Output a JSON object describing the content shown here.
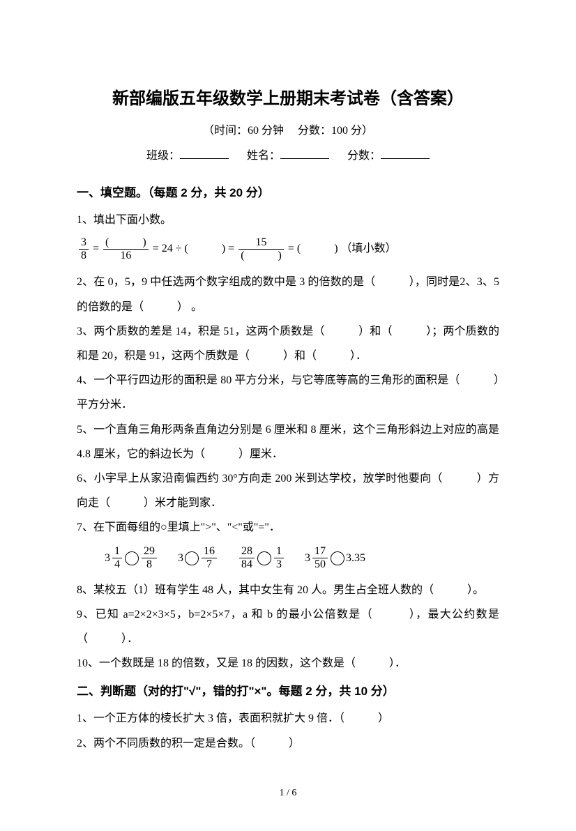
{
  "title": "新部编版五年级数学上册期末考试卷（含答案）",
  "subtitle": "（时间：60 分钟　 分数：100 分）",
  "info": {
    "class_label": "班级：",
    "name_label": "姓名：",
    "score_label": "分数："
  },
  "section1": {
    "header": "一、填空题。（每题 2 分，共 20 分）",
    "q1": "1、填出下面小数。",
    "q1_eq_frac_left_num": "3",
    "q1_eq_frac_left_den": "8",
    "q1_eq_eq": "=",
    "q1_eq_frac2_num": "(　　　)",
    "q1_eq_frac2_den": "16",
    "q1_eq_div": "= 24 ÷ (　　　) =",
    "q1_eq_frac3_num": "15",
    "q1_eq_frac3_den": "(　　　)",
    "q1_eq_tail": "= (　　　) （填小数）",
    "q2": "2、在 0，5，9 中任选两个数字组成的数中是 3 的倍数的是（　　　），同时是2、3、5 的倍数的是（　　　） 。",
    "q3": "3、两个质数的差是 14，积是 51，这两个质数是（　　　）和（　　　）；两个质数的和是 20，积是 91，这两个质数是（　　　）和（　　　）．",
    "q4": "4、一个平行四边形的面积是 80 平方分米，与它等底等高的三角形的面积是（　　　）平方分米．",
    "q5": "5、一个直角三角形两条直角边分别是 6 厘米和 8 厘米，这个三角形斜边上对应的高是 4.8 厘米，它的斜边长为（　　　）厘米．",
    "q6": "6、小宇早上从家沿南偏西约 30°方向走 200 米到达学校，放学时他要向（　　　）方向走（　　　）米才能到家．",
    "q7": "7、在下面每组的○里填上\">\"、\"<\"或\"=\"．",
    "q7_c1_whole": "3",
    "q7_c1_num": "1",
    "q7_c1_den": "4",
    "q7_c1b_num": "29",
    "q7_c1b_den": "8",
    "q7_c2_a": "3",
    "q7_c2_num": "16",
    "q7_c2_den": "7",
    "q7_c3a_num": "28",
    "q7_c3a_den": "84",
    "q7_c3b_num": "1",
    "q7_c3b_den": "3",
    "q7_c4_whole": "3",
    "q7_c4_num": "17",
    "q7_c4_den": "50",
    "q7_c4_b": "3.35",
    "q8": "8、某校五（1）班有学生 48 人，其中女生有 20 人。男生占全班人数的（　　　）。",
    "q9": "9、已知 a=2×2×3×5，b=2×5×7，a 和 b 的最小公倍数是（　　　），最大公约数是（　　　）．",
    "q10": "10、一个数既是 18 的倍数，又是 18 的因数，这个数是（　　　）．"
  },
  "section2": {
    "header": "二、判断题（对的打\"√\"，错的打\"×\"。每题 2 分，共 10 分）",
    "q1": "1、一个正方体的棱长扩大 3 倍，表面积就扩大 9 倍．（　　　）",
    "q2": "2、两个不同质数的积一定是合数。（　　　）"
  },
  "page": "1 / 6"
}
